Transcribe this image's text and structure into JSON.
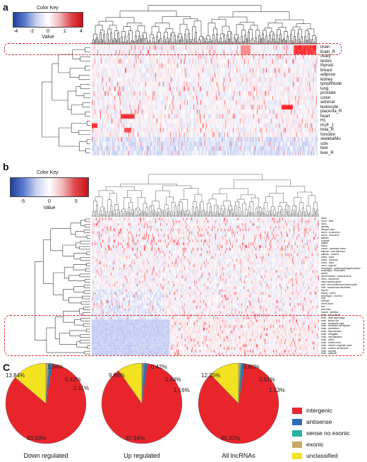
{
  "panel_a": {
    "letter": "a",
    "color_key": {
      "title": "Color Key",
      "value_label": "Value",
      "ticks": [
        "-4",
        "-2",
        "0",
        "2",
        "4"
      ]
    },
    "rows": [
      "brain",
      "brain_R",
      "ovary",
      "testes",
      "thyroid",
      "breast",
      "adipose",
      "kidney",
      "lymphNode",
      "lung",
      "prostate",
      "colon",
      "adrenal",
      "leukocyte",
      "placenta_R",
      "heart",
      "H1",
      "HUF_1",
      "hela_R",
      "foreskin",
      "skeletalMu",
      "scle",
      "liver",
      "liver_R"
    ]
  },
  "panel_b": {
    "letter": "b",
    "color_key": {
      "title": "Color Key",
      "value_label": "Value",
      "ticks": [
        "-5",
        "0",
        "5"
      ]
    },
    "rows": [
      "testis",
      "nerve - tibial",
      "ovary",
      "pituitary",
      "fallopian tube",
      "cervix - endocervix",
      "cervix - ectocervix",
      "bladder",
      "prostate",
      "vagina",
      "uterus",
      "breast - mammary tissue",
      "adipose - subcutaneous",
      "adipose - visceral",
      "artery - aorta",
      "artery - coronary",
      "artery - tibial",
      "colon - sigmoid",
      "esophagus - gastroesophageal junction",
      "esophagus - muscularis",
      "spleen",
      "small intestine - terminal ileum",
      "colon - transverse",
      "minor salivary gland",
      "cells - ebv-transformed lymphocytes",
      "cells - transformed fibroblasts",
      "thyroid",
      "kidney - cortex",
      "esophagus - mucosa",
      "lung",
      "stomach",
      "whole blood",
      "liver",
      "pancreas",
      "muscle - skeletal",
      "heart - left ventricle",
      "heart - atrial appendage",
      "brain - spinal cord",
      "brain - substantia nigra",
      "brain - cerebellar hemisphere",
      "brain - cerebellum",
      "brain - hippocampus",
      "brain - amygdala",
      "brain - hypothalamus",
      "brain - cortex",
      "brain - frontal cortex",
      "brain - anterior cingulate cortex",
      "brain - nucleus accumbens",
      "brain - caudate",
      "brain - putamen"
    ]
  },
  "panel_c": {
    "letter": "C",
    "charts_data": [
      {
        "type": "pie",
        "title": "Down regulated",
        "categories": [
          "intergenic",
          "antisense",
          "sense no exonic",
          "exonic",
          "unclassified"
        ],
        "values": [
          83.59,
          1.11,
          0.42,
          1.04,
          13.84
        ],
        "labels": [
          "83.59%",
          "1.11%",
          "0.42%",
          "1.04%",
          "13.84%"
        ]
      },
      {
        "type": "pie",
        "title": "Up regulated",
        "categories": [
          "intergenic",
          "antisense",
          "sense no exonic",
          "exonic",
          "unclassified"
        ],
        "values": [
          87.94,
          1.16,
          0.64,
          0.42,
          9.84
        ],
        "labels": [
          "87.94%",
          "1.16%",
          "0.64%",
          "0.42%",
          "9.84%"
        ]
      },
      {
        "type": "pie",
        "title": "All lncRNAs",
        "categories": [
          "intergenic",
          "antisense",
          "sense no exonic",
          "exonic",
          "unclassified"
        ],
        "values": [
          85.31,
          1.13,
          0.51,
          0.8,
          12.25
        ],
        "labels": [
          "85.31%",
          "1.13%",
          "0.51%",
          "0.80%",
          "12.25%"
        ]
      }
    ],
    "legend": [
      {
        "label": "intergenic",
        "color": "#e8252b"
      },
      {
        "label": "antisense",
        "color": "#2a6fb8"
      },
      {
        "label": "sense no exonic",
        "color": "#27b3a6"
      },
      {
        "label": "exonic",
        "color": "#c9a86a"
      },
      {
        "label": "unclassified",
        "color": "#f2e21f"
      }
    ]
  }
}
